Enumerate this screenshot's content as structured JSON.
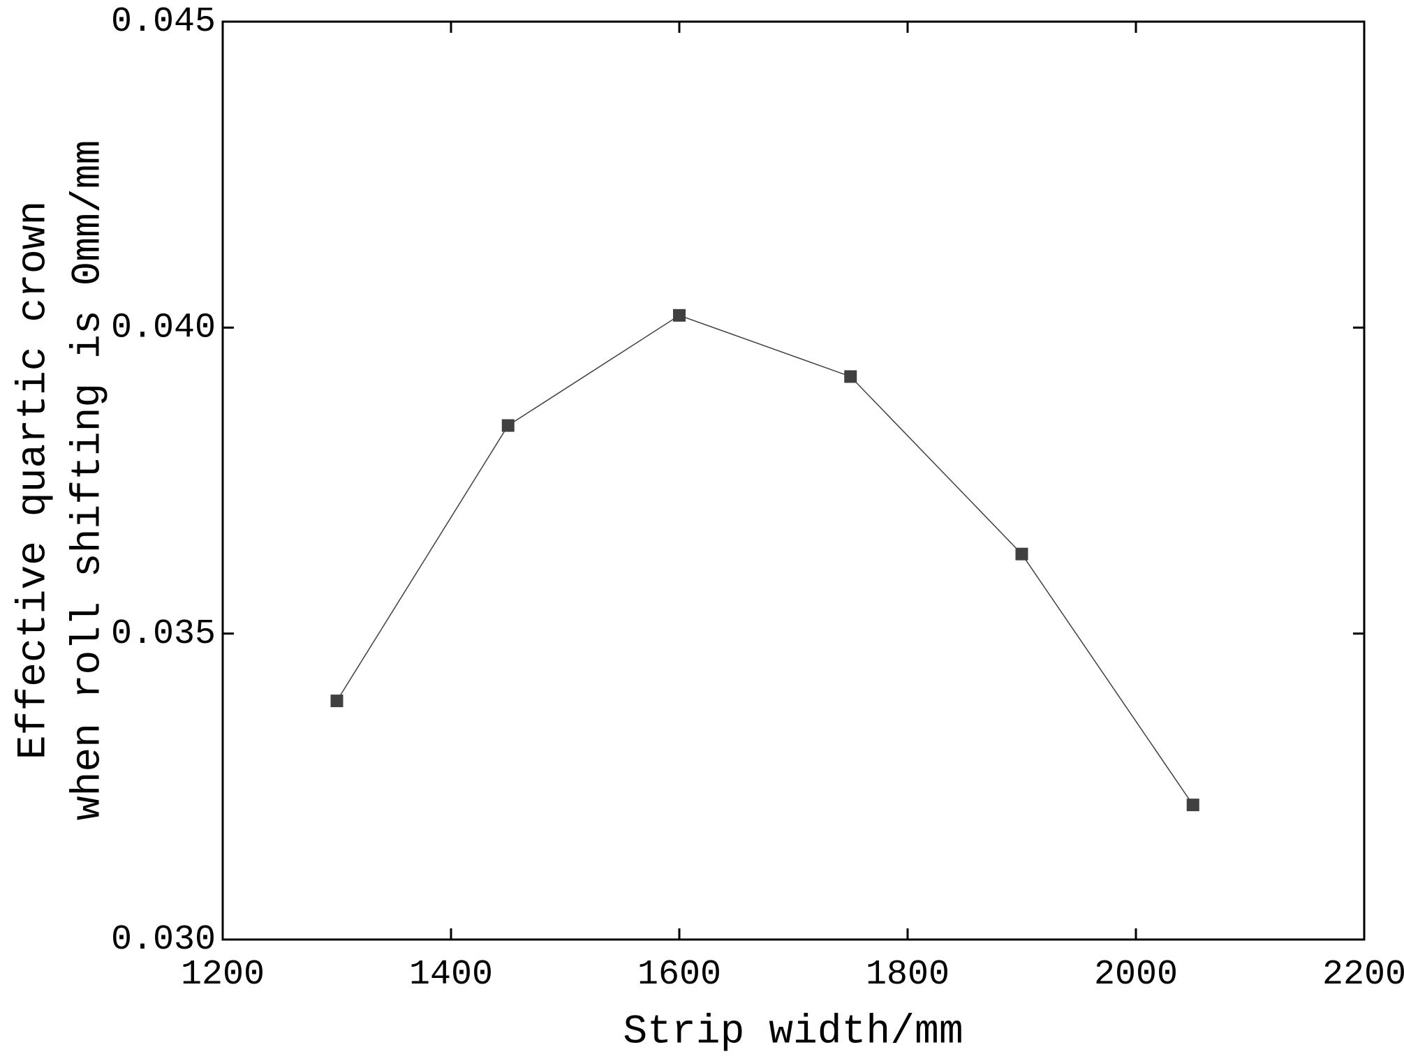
{
  "chart_data": {
    "type": "line",
    "xlabel": "Strip width/mm",
    "ylabel": [
      "Effective quartic crown",
      "when roll shifting is 0mm/mm"
    ],
    "x": [
      1300,
      1450,
      1600,
      1750,
      1900,
      2050
    ],
    "series": [
      {
        "color": "#404040",
        "values": [
          0.0339,
          0.0384,
          0.0402,
          0.0392,
          0.0363,
          0.0322
        ]
      }
    ],
    "xlim": [
      1200,
      2200
    ],
    "xticks": [
      1200,
      1400,
      1600,
      1800,
      2000,
      2200
    ],
    "ylim": [
      0.03,
      0.045
    ],
    "yticks": [
      {
        "value": 0.03,
        "label": "0.030"
      },
      0.035,
      {
        "value": 0.04,
        "label": "0.040"
      },
      0.045
    ]
  }
}
